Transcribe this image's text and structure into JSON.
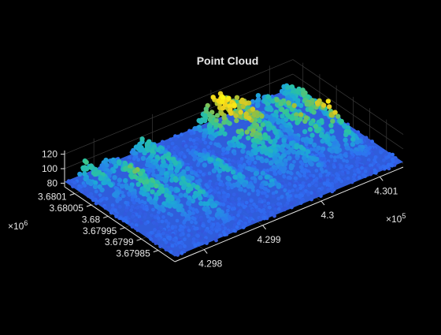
{
  "chart_data": {
    "type": "scatter",
    "title": "Point Cloud",
    "background": "#000000",
    "axis_color": "#e6e6e6",
    "grid": true,
    "colormap": [
      "#3e26a8",
      "#2f6df3",
      "#1ca9d6",
      "#2dc69a",
      "#a5be33",
      "#f4d21b",
      "#f9fb0e"
    ],
    "x_axis": {
      "ticks": [
        4.298,
        4.299,
        4.3,
        4.301
      ],
      "tick_labels": [
        "4.298",
        "4.299",
        "4.3",
        "4.301"
      ],
      "exponent_label": "×10",
      "exponent_power": "5",
      "range": [
        4.2975,
        4.3014
      ]
    },
    "y_axis": {
      "ticks": [
        3.67985,
        3.6799,
        3.67995,
        3.68,
        3.68005,
        3.6801
      ],
      "tick_labels": [
        "3.67985",
        "3.6799",
        "3.67995",
        "3.68",
        "3.68005",
        "3.6801"
      ],
      "exponent_label": "×10",
      "exponent_power": "6",
      "range": [
        3.6798,
        3.68013
      ]
    },
    "z_axis": {
      "ticks": [
        80,
        100,
        120
      ],
      "tick_labels": [
        "80",
        "100",
        "120"
      ],
      "range": [
        75,
        125
      ]
    },
    "surface": {
      "ground_elevation": 82,
      "max_elevation": 125,
      "tree_clusters": [
        {
          "x": 4.30005,
          "y": 3.68011,
          "height": 122,
          "spread": 0.00028
        },
        {
          "x": 4.3003,
          "y": 3.68008,
          "height": 112,
          "spread": 0.0002
        },
        {
          "x": 4.3008,
          "y": 3.68002,
          "height": 108,
          "spread": 0.0002
        },
        {
          "x": 4.3011,
          "y": 3.67998,
          "height": 118,
          "spread": 0.00015
        },
        {
          "x": 4.3012,
          "y": 3.68006,
          "height": 102,
          "spread": 0.00015
        },
        {
          "x": 4.2998,
          "y": 3.68009,
          "height": 103,
          "spread": 0.00015
        },
        {
          "x": 4.2988,
          "y": 3.68008,
          "height": 100,
          "spread": 0.0002
        },
        {
          "x": 4.2982,
          "y": 3.68002,
          "height": 105,
          "spread": 0.0002
        },
        {
          "x": 4.2986,
          "y": 3.67995,
          "height": 98,
          "spread": 0.00018
        },
        {
          "x": 4.2993,
          "y": 3.67997,
          "height": 96,
          "spread": 0.00015
        },
        {
          "x": 4.2978,
          "y": 3.68011,
          "height": 102,
          "spread": 0.00015
        },
        {
          "x": 4.2996,
          "y": 3.6799,
          "height": 92,
          "spread": 0.00012
        },
        {
          "x": 4.3004,
          "y": 3.67993,
          "height": 94,
          "spread": 0.00012
        }
      ]
    }
  }
}
